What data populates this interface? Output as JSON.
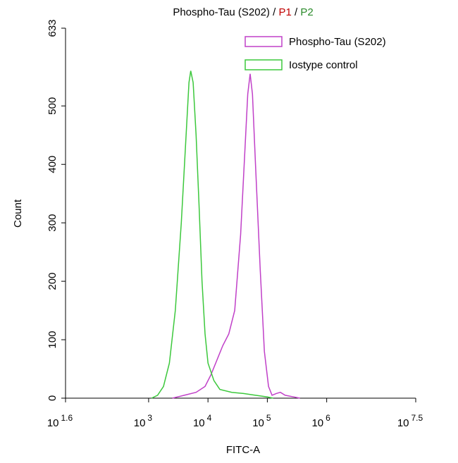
{
  "chart_data": {
    "type": "histogram-line",
    "title_parts": [
      {
        "text": "Phospho-Tau (S202)",
        "color": "#000000"
      },
      {
        "text": " / ",
        "color": "#000000"
      },
      {
        "text": "P1",
        "color": "#c00000"
      },
      {
        "text": " / ",
        "color": "#000000"
      },
      {
        "text": "P2",
        "color": "#2a8a2a"
      }
    ],
    "xlabel": "FITC-A",
    "ylabel": "Count",
    "xscale": "log",
    "xlim": [
      39.81,
      31622777
    ],
    "xticks": [
      {
        "value": 39.81,
        "label": "10",
        "sup": "1.6"
      },
      {
        "value": 1000,
        "label": "10",
        "sup": "3"
      },
      {
        "value": 10000,
        "label": "10",
        "sup": "4"
      },
      {
        "value": 100000,
        "label": "10",
        "sup": "5"
      },
      {
        "value": 1000000,
        "label": "10",
        "sup": "6"
      },
      {
        "value": 31622777,
        "label": "10",
        "sup": "7.5"
      }
    ],
    "ylim": [
      0,
      633
    ],
    "yticks": [
      0,
      100,
      200,
      300,
      400,
      500,
      633
    ],
    "legend": "top-right",
    "series": [
      {
        "name": "Phospho-Tau (S202)",
        "color": "#c040c8",
        "x": [
          2512,
          3981,
          6310,
          8913,
          11220,
          14125,
          17783,
          22387,
          28184,
          35481,
          41687,
          46774,
          51286,
          56234,
          63096,
          75858,
          89125,
          104713,
          120226,
          141254,
          165959,
          199526,
          281838,
          354813
        ],
        "values": [
          0,
          5,
          10,
          20,
          40,
          65,
          90,
          110,
          150,
          280,
          420,
          520,
          555,
          520,
          400,
          220,
          80,
          20,
          5,
          8,
          10,
          5,
          2,
          0
        ]
      },
      {
        "name": "Iostype control",
        "color": "#3cc83c",
        "x": [
          1122,
          1413,
          1778,
          2239,
          2818,
          3548,
          4169,
          4786,
          5129,
          5623,
          6310,
          7079,
          7943,
          8913,
          10000,
          12589,
          15849,
          25119,
          39811,
          63096,
          100000,
          125893
        ],
        "values": [
          0,
          5,
          20,
          60,
          150,
          300,
          430,
          540,
          560,
          540,
          450,
          330,
          200,
          110,
          60,
          30,
          15,
          10,
          8,
          5,
          2,
          0
        ]
      }
    ]
  }
}
